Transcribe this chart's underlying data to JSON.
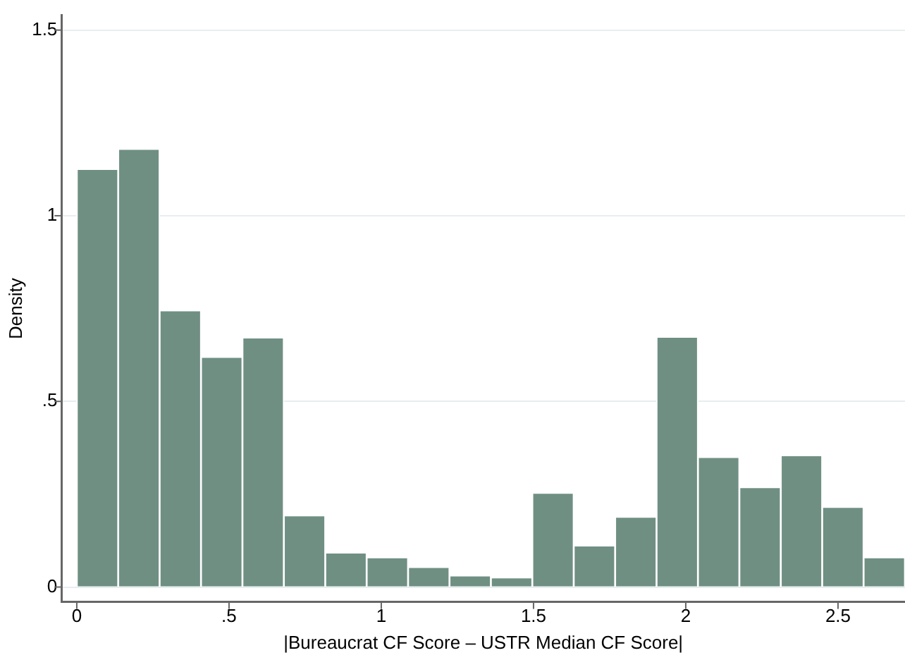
{
  "chart_data": {
    "type": "histogram",
    "xlabel": "|Bureaucrat CF Score – USTR Median CF Score|",
    "ylabel": "Density",
    "bins": [
      0,
      0.136,
      0.272,
      0.408,
      0.544,
      0.68,
      0.816,
      0.952,
      1.088,
      1.224,
      1.36,
      1.496,
      1.632,
      1.768,
      1.904,
      2.04,
      2.176,
      2.312,
      2.448,
      2.584,
      2.72
    ],
    "values": [
      1.126,
      1.18,
      0.745,
      0.62,
      0.672,
      0.193,
      0.093,
      0.08,
      0.054,
      0.031,
      0.026,
      0.254,
      0.112,
      0.189,
      0.674,
      0.35,
      0.269,
      0.355,
      0.216,
      0.08
    ],
    "color": "#6f8f83",
    "xlim": [
      -0.05,
      2.72
    ],
    "xticks": [
      0,
      {
        "value": 0.5,
        "label": ".5"
      },
      1,
      1.5,
      2,
      2.5
    ],
    "ylim": [
      -0.04,
      1.54
    ],
    "yticks": [
      0,
      {
        "value": 0.5,
        "label": ".5"
      },
      1,
      1.5
    ],
    "grid": "y",
    "legend": false
  }
}
